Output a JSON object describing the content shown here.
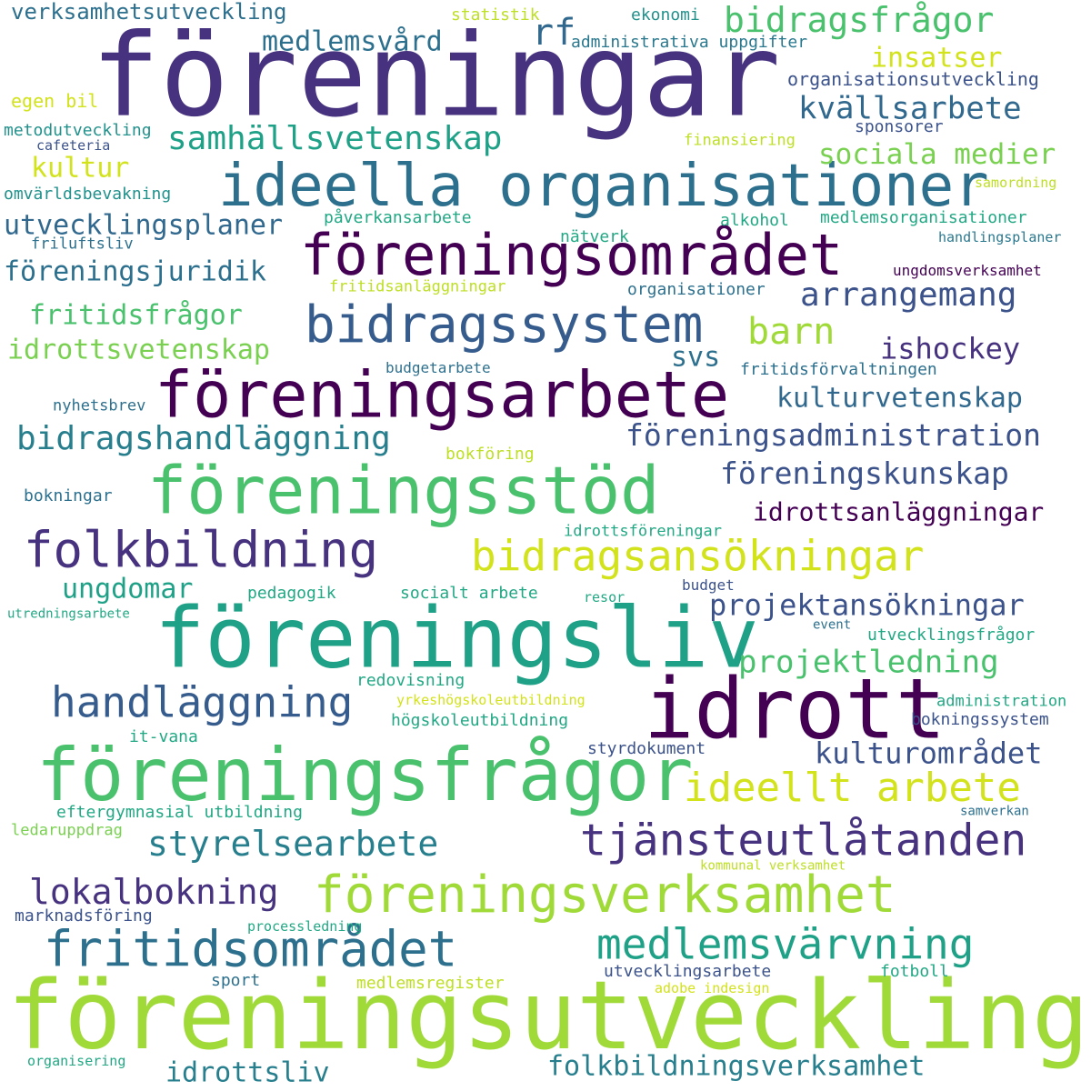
{
  "words": [
    {
      "text": "föreningar",
      "color": "#46327e"
    },
    {
      "text": "föreningsutveckling",
      "color": "#a0da39"
    },
    {
      "text": "föreningsliv",
      "color": "#1fa187"
    },
    {
      "text": "idrott",
      "color": "#440154"
    },
    {
      "text": "föreningsfrågor",
      "color": "#4ac16d"
    },
    {
      "text": "ideella organisationer",
      "color": "#2d708e"
    },
    {
      "text": "föreningsarbete",
      "color": "#440154"
    },
    {
      "text": "föreningsstöd",
      "color": "#4ac16d"
    },
    {
      "text": "föreningsområdet",
      "color": "#440154"
    },
    {
      "text": "föreningsverksamhet",
      "color": "#a0da39"
    },
    {
      "text": "bidragssystem",
      "color": "#365c8d"
    },
    {
      "text": "folkbildning",
      "color": "#46327e"
    },
    {
      "text": "fritidsområdet",
      "color": "#2d708e"
    },
    {
      "text": "tjänsteutlåtanden",
      "color": "#46327e"
    },
    {
      "text": "bidragsansökningar",
      "color": "#d2e21b"
    },
    {
      "text": "handläggning",
      "color": "#365c8d"
    },
    {
      "text": "medlemsvärvning",
      "color": "#1fa187"
    },
    {
      "text": "ideellt arbete",
      "color": "#d2e21b"
    },
    {
      "text": "bidragsfrågor",
      "color": "#4ac16d"
    },
    {
      "text": "styrelsearbete",
      "color": "#277f8e"
    },
    {
      "text": "lokalbokning",
      "color": "#46327e"
    },
    {
      "text": "bidragshandläggning",
      "color": "#277f8e"
    },
    {
      "text": "arrangemang",
      "color": "#3b528b"
    },
    {
      "text": "samhällsvetenskap",
      "color": "#1fa187"
    },
    {
      "text": "barn",
      "color": "#a0da39"
    },
    {
      "text": "föreningsadministration",
      "color": "#3b528b"
    },
    {
      "text": "föreningskunskap",
      "color": "#3b528b"
    },
    {
      "text": "kvällsarbete",
      "color": "#31688e"
    },
    {
      "text": "projektledning",
      "color": "#4ac16d"
    },
    {
      "text": "kulturområdet",
      "color": "#3b528b"
    },
    {
      "text": "folkbildningsverksamhet",
      "color": "#277f8e"
    },
    {
      "text": "projektansökningar",
      "color": "#3b528b"
    },
    {
      "text": "rf",
      "color": "#31688e"
    },
    {
      "text": "sociala medier",
      "color": "#7ad151"
    },
    {
      "text": "ishockey",
      "color": "#46327e"
    },
    {
      "text": "kulturvetenskap",
      "color": "#31688e"
    },
    {
      "text": "idrottsvetenskap",
      "color": "#7ad151"
    },
    {
      "text": "fritidsfrågor",
      "color": "#4ac16d"
    },
    {
      "text": "föreningsjuridik",
      "color": "#2d708e"
    },
    {
      "text": "utvecklingsplaner",
      "color": "#31688e"
    },
    {
      "text": "insatser",
      "color": "#d2e21b"
    },
    {
      "text": "medlemsvård",
      "color": "#2d708e"
    },
    {
      "text": "idrottsanläggningar",
      "color": "#440154"
    },
    {
      "text": "ungdomar",
      "color": "#1fa187"
    },
    {
      "text": "kultur",
      "color": "#d2e21b"
    },
    {
      "text": "svs",
      "color": "#2d708e"
    },
    {
      "text": "idrottsliv",
      "color": "#277f8e"
    },
    {
      "text": "verksamhetsutveckling",
      "color": "#2d708e"
    },
    {
      "text": "statistik",
      "color": "#bddf26"
    },
    {
      "text": "ekonomi",
      "color": "#21918c"
    },
    {
      "text": "administrativa uppgifter",
      "color": "#2a788e"
    },
    {
      "text": "organisationsutveckling",
      "color": "#3b528b"
    },
    {
      "text": "egen bil",
      "color": "#d2e21b"
    },
    {
      "text": "metodutveckling",
      "color": "#21918c"
    },
    {
      "text": "cafeteria",
      "color": "#3b528b"
    },
    {
      "text": "finansiering",
      "color": "#bddf26"
    },
    {
      "text": "sponsorer",
      "color": "#3b528b"
    },
    {
      "text": "omvärldsbevakning",
      "color": "#21918c"
    },
    {
      "text": "samordning",
      "color": "#bddf26"
    },
    {
      "text": "påverkansarbete",
      "color": "#22a884"
    },
    {
      "text": "alkohol",
      "color": "#22a884"
    },
    {
      "text": "medlemsorganisationer",
      "color": "#22a884"
    },
    {
      "text": "friluftsliv",
      "color": "#2d708e"
    },
    {
      "text": "nätverk",
      "color": "#22a884"
    },
    {
      "text": "handlingsplaner",
      "color": "#2a788e"
    },
    {
      "text": "ungdomsverksamhet",
      "color": "#440154"
    },
    {
      "text": "fritidsanläggningar",
      "color": "#bddf26"
    },
    {
      "text": "organisationer",
      "color": "#2d708e"
    },
    {
      "text": "budgetarbete",
      "color": "#2d708e"
    },
    {
      "text": "fritidsförvaltningen",
      "color": "#2d708e"
    },
    {
      "text": "nyhetsbrev",
      "color": "#2d708e"
    },
    {
      "text": "bokföring",
      "color": "#bddf26"
    },
    {
      "text": "bokningar",
      "color": "#2d708e"
    },
    {
      "text": "idrottsföreningar",
      "color": "#22a884"
    },
    {
      "text": "pedagogik",
      "color": "#22a884"
    },
    {
      "text": "socialt arbete",
      "color": "#22a884"
    },
    {
      "text": "resor",
      "color": "#22a884"
    },
    {
      "text": "budget",
      "color": "#3b528b"
    },
    {
      "text": "utredningsarbete",
      "color": "#22a884"
    },
    {
      "text": "event",
      "color": "#2d708e"
    },
    {
      "text": "utvecklingsfrågor",
      "color": "#22a884"
    },
    {
      "text": "redovisning",
      "color": "#22a884"
    },
    {
      "text": "yrkeshögskoleutbildning",
      "color": "#d2e21b"
    },
    {
      "text": "högskoleutbildning",
      "color": "#22a884"
    },
    {
      "text": "administration",
      "color": "#22a884"
    },
    {
      "text": "bokningssystem",
      "color": "#3b528b"
    },
    {
      "text": "it-vana",
      "color": "#22a884"
    },
    {
      "text": "styrdokument",
      "color": "#3b528b"
    },
    {
      "text": "eftergymnasial utbildning",
      "color": "#22a884"
    },
    {
      "text": "samverkan",
      "color": "#2d708e"
    },
    {
      "text": "ledaruppdrag",
      "color": "#7ad151"
    },
    {
      "text": "kommunal verksamhet",
      "color": "#bddf26"
    },
    {
      "text": "marknadsföring",
      "color": "#3b528b"
    },
    {
      "text": "processledning",
      "color": "#22a884"
    },
    {
      "text": "sport",
      "color": "#2d708e"
    },
    {
      "text": "medlemsregister",
      "color": "#bddf26"
    },
    {
      "text": "utvecklingsarbete",
      "color": "#3b528b"
    },
    {
      "text": "fotboll",
      "color": "#22a884"
    },
    {
      "text": "adobe indesign",
      "color": "#d2e21b"
    },
    {
      "text": "organisering",
      "color": "#22a884"
    }
  ]
}
